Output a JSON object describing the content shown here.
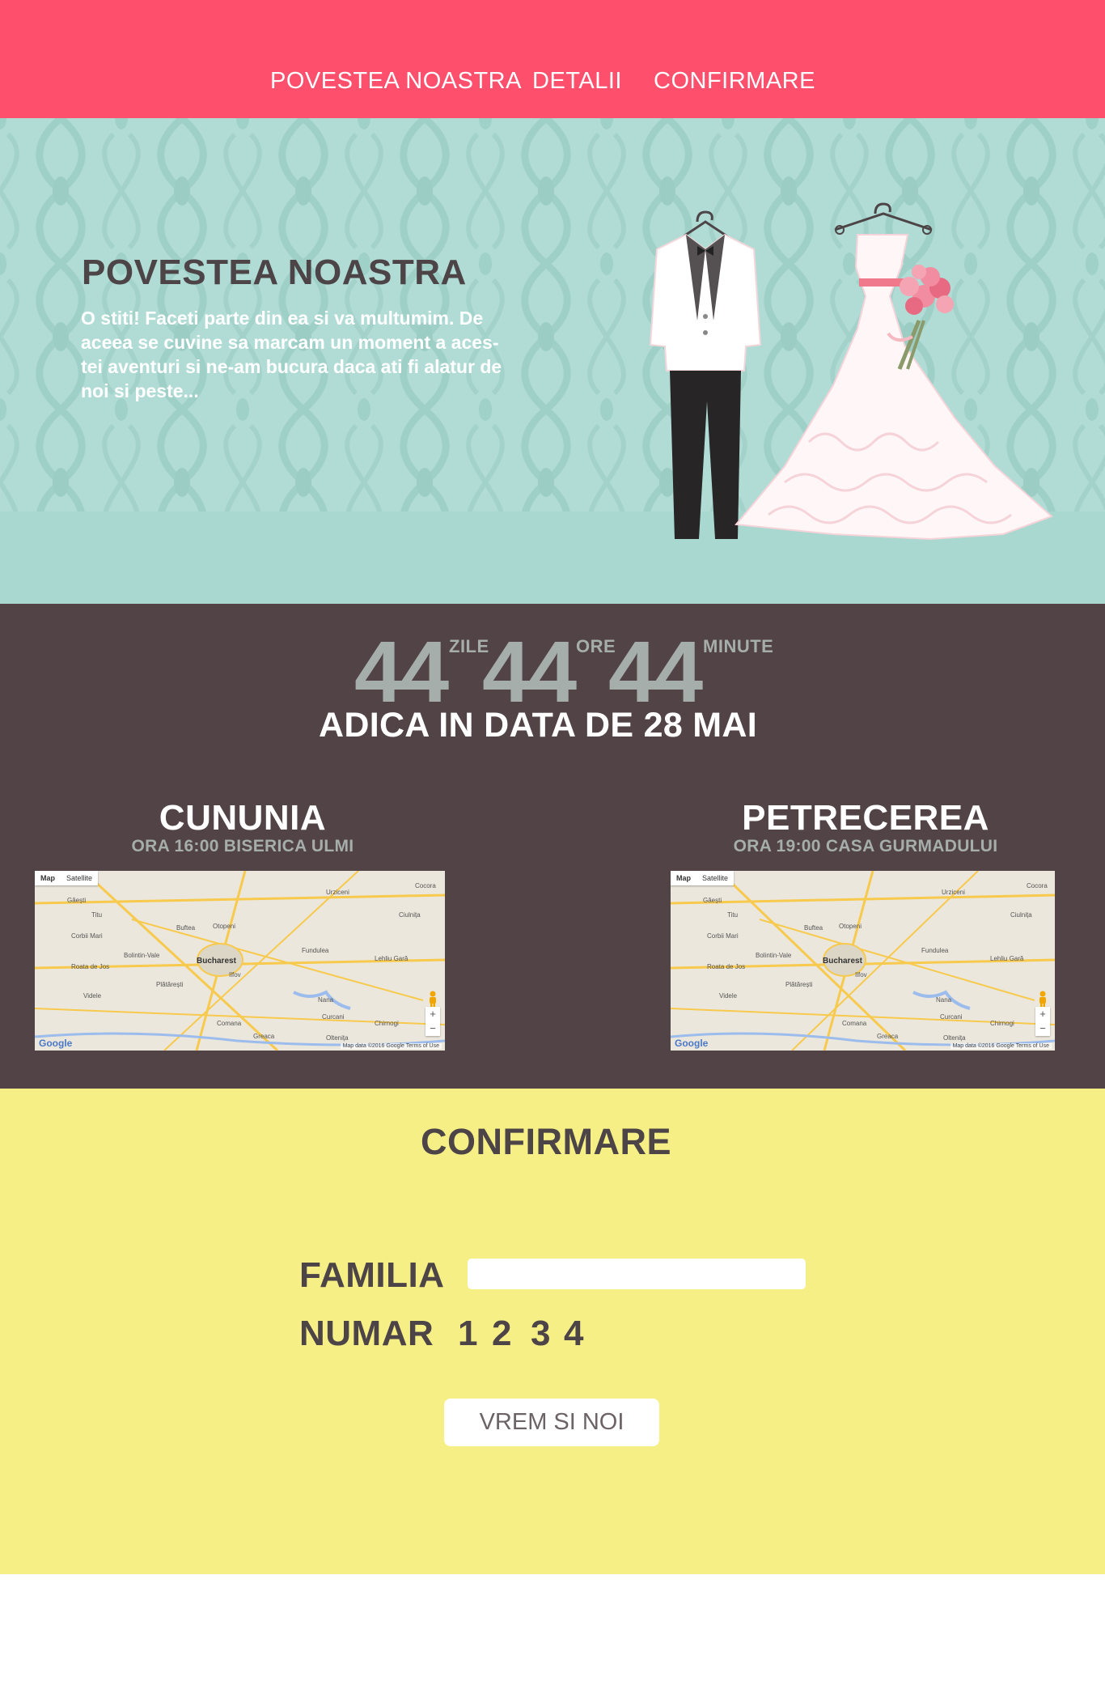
{
  "nav": {
    "items": [
      {
        "label": "POVESTEA NOASTRA"
      },
      {
        "label": "DETALII"
      },
      {
        "label": "CONFIRMARE"
      }
    ]
  },
  "hero": {
    "title": "POVESTEA NOASTRA",
    "text": "O stiti! Faceti parte din ea si va multumim. De aceea se cuvine sa marcam un moment a aces-tei aventuri si ne-am bucura daca ati fi alatur de noi si peste..."
  },
  "countdown": {
    "days": "44",
    "days_label": "ZILE",
    "hours": "44",
    "hours_label": "ORE",
    "minutes": "44",
    "minutes_label": "MINUTE",
    "date_line": "ADICA IN DATA DE 28 MAI"
  },
  "events": [
    {
      "title": "CUNUNIA",
      "subtitle": "ORA 16:00 BISERICA ULMI"
    },
    {
      "title": "PETRECEREA",
      "subtitle": "ORA 19:00 CASA GURMADULUI"
    }
  ],
  "map": {
    "tab_map": "Map",
    "tab_satellite": "Satellite",
    "city": "Bucharest",
    "logo": "Google",
    "terms": "Map data ©2016 Google   Terms of Use",
    "zoom_in": "+",
    "zoom_out": "−",
    "places": [
      "Găești",
      "Titu",
      "Urziceni",
      "Cocora",
      "Ciulnița",
      "Buftea",
      "Otopeni",
      "Corbii Mari",
      "Bolintin-Vale",
      "Fundulea",
      "Lehliu Gară",
      "Roata de Jos",
      "Videle",
      "Nana",
      "Curcani",
      "Comana",
      "Oltenița",
      "Chirnogi",
      "Greaca",
      "Plătărești",
      "Ilfov"
    ]
  },
  "rsvp": {
    "title": "CONFIRMARE",
    "family_label": "FAMILIA",
    "family_value": "",
    "number_label": "NUMAR",
    "numbers": [
      "1",
      "2",
      "3",
      "4"
    ],
    "submit_label": "VREM SI NOI"
  },
  "colors": {
    "nav": "#fe4f6c",
    "hero": "#a9d8d1",
    "events": "#514346",
    "rsvp": "#f5ef86",
    "text_dark": "#4c4446",
    "muted": "#a6aeab"
  }
}
